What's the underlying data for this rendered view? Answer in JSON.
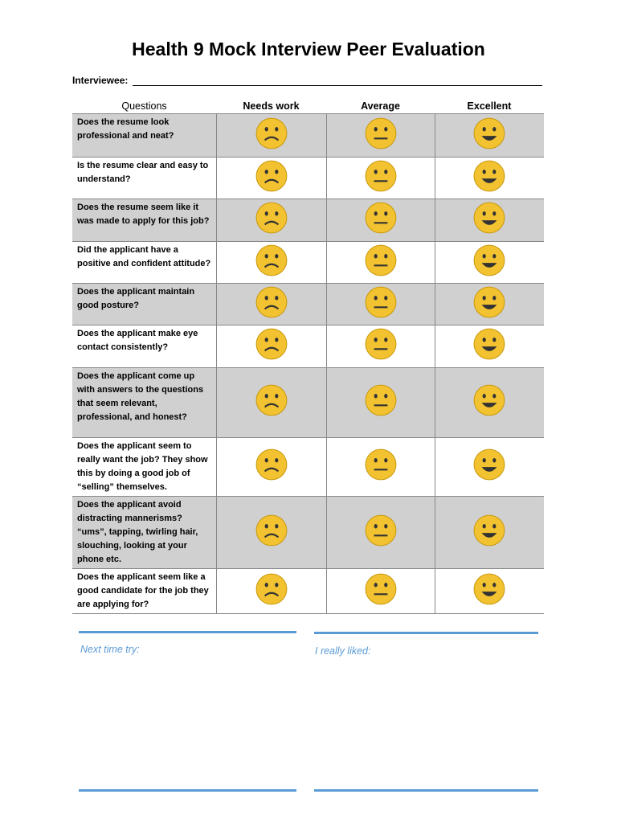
{
  "header": {
    "title": "Health 9 Mock Interview Peer Evaluation",
    "interviewee_label": "Interviewee:"
  },
  "table": {
    "columns": [
      "Questions",
      "Needs work",
      "Average",
      "Excellent"
    ],
    "rows": [
      "Does the resume look professional and neat?",
      "Is the resume clear and easy to understand?",
      "Does the resume seem like it was made to apply for this job?",
      "Did the applicant have a positive and confident attitude?",
      "Does the applicant maintain good posture?",
      "Does the applicant make eye contact consistently?",
      "Does the applicant come up with answers to the questions that seem relevant, professional, and honest?",
      "Does the applicant seem to really want the job? They show this by doing a good job of “selling” themselves.",
      "Does the applicant avoid distracting mannerisms? “ums”, tapping, twirling hair, slouching, looking at your phone etc.",
      "Does the applicant seem like a good candidate for the job they are applying for?"
    ]
  },
  "footer": {
    "left_label": "Next time try:",
    "right_label": "I really liked:"
  }
}
